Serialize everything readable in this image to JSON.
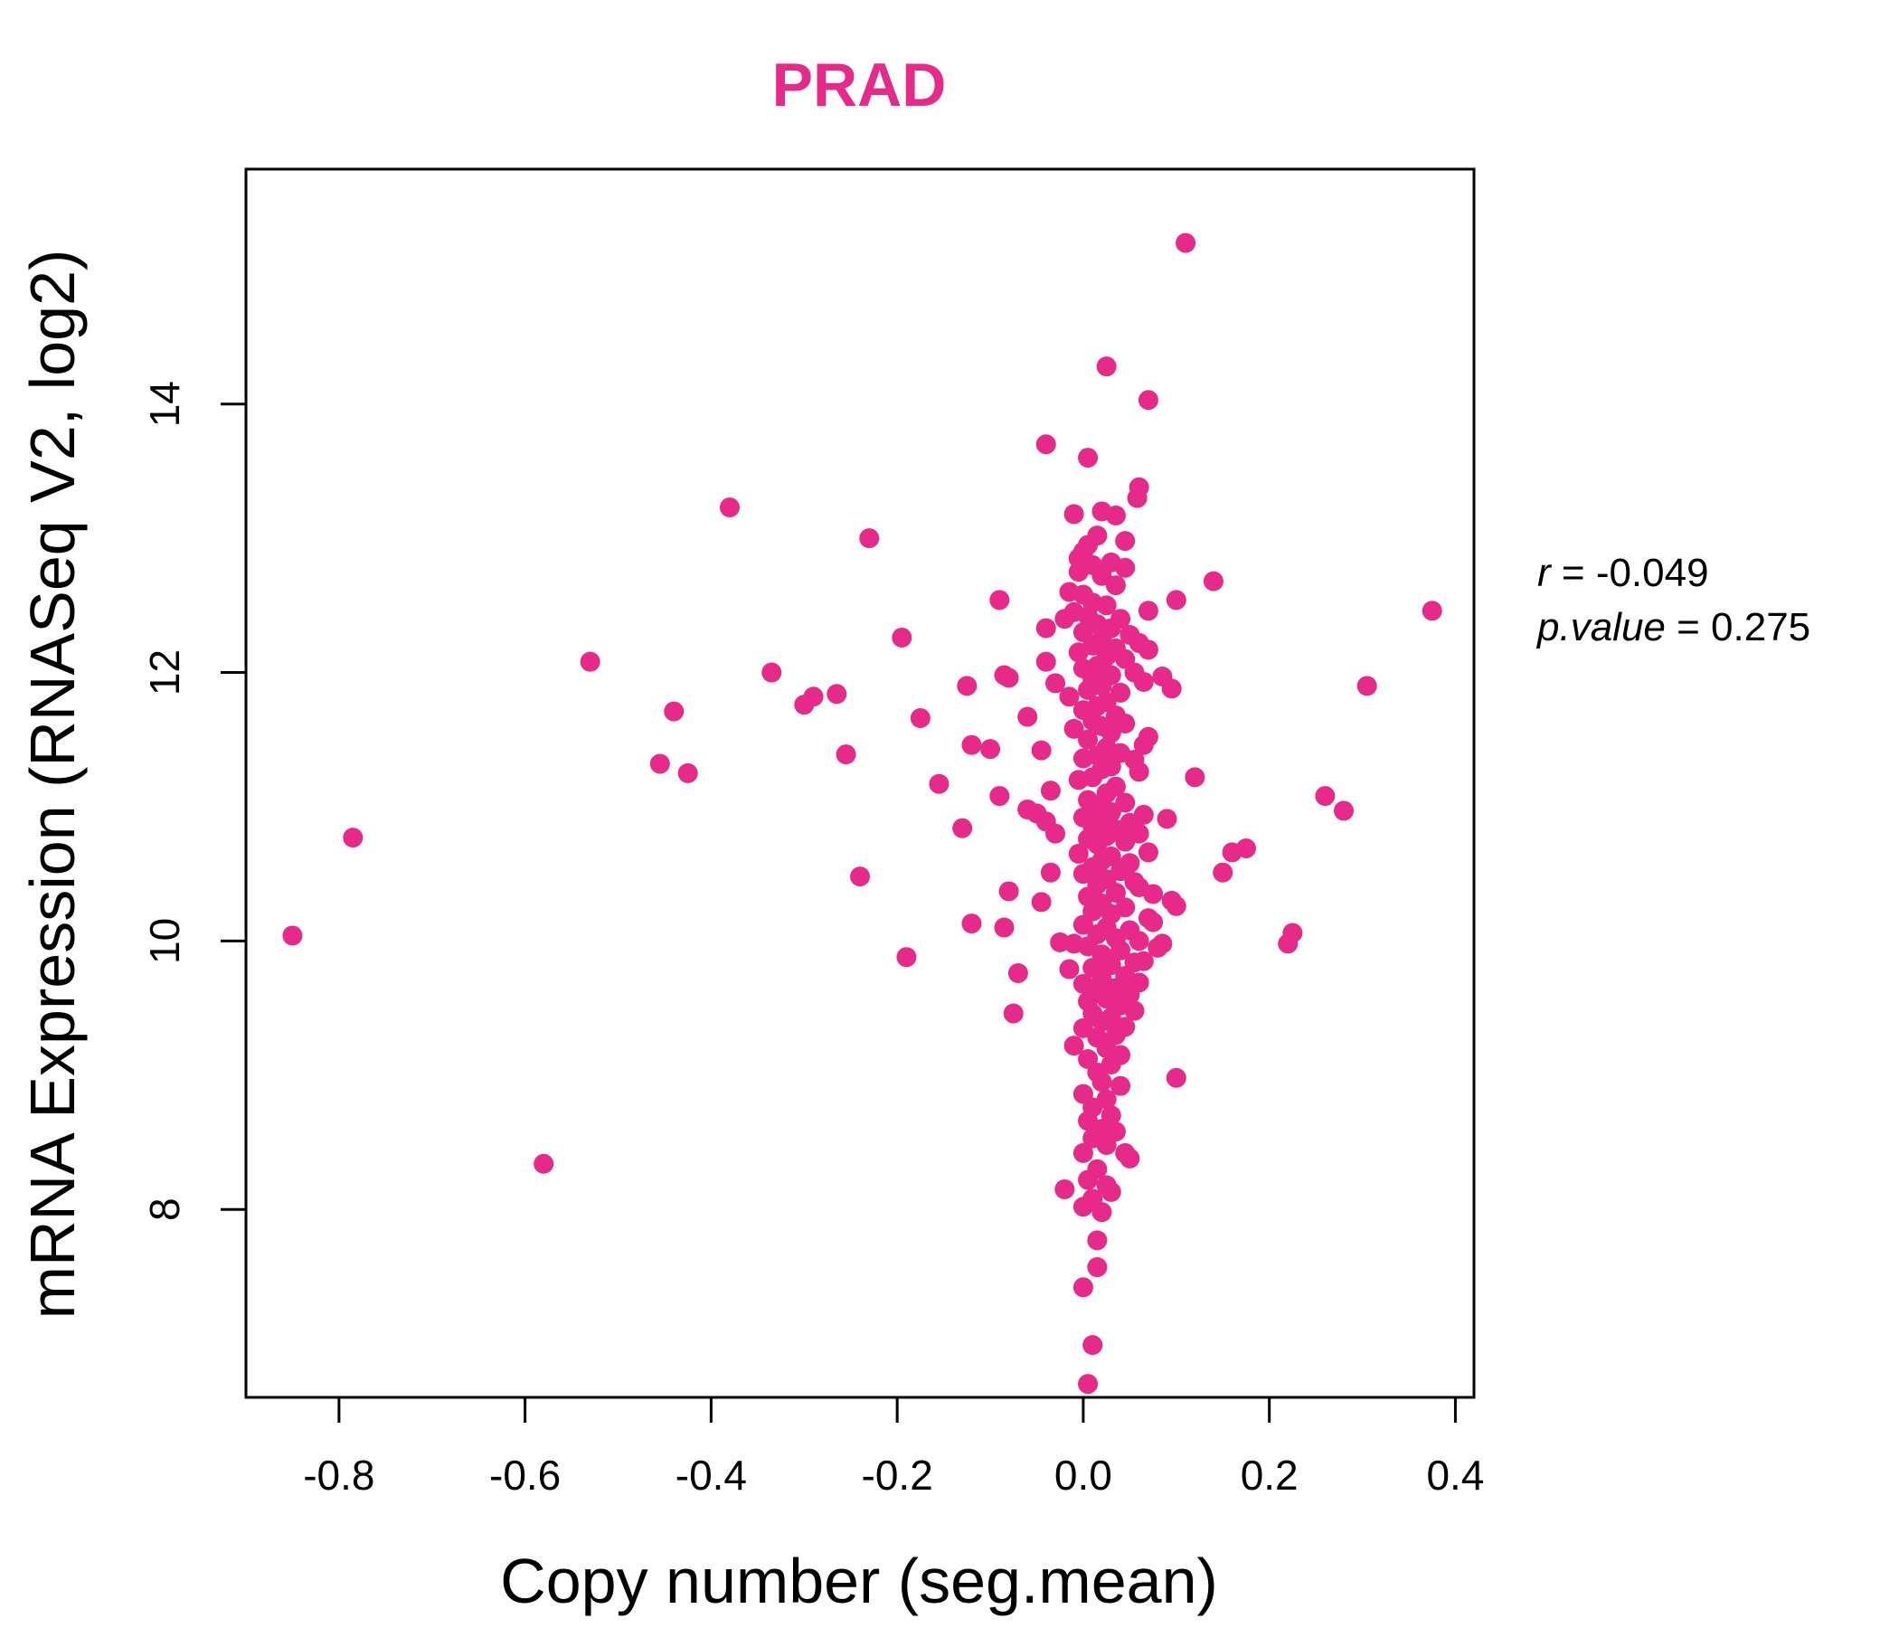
{
  "chart_data": {
    "type": "scatter",
    "title": "PRAD",
    "xlabel": "Copy number (seg.mean)",
    "ylabel": "mRNA Expression (RNASeq V2, log2)",
    "xlim": [
      -0.9,
      0.42
    ],
    "ylim": [
      6.6,
      15.75
    ],
    "x_ticks": [
      -0.8,
      -0.6,
      -0.4,
      -0.2,
      0.0,
      0.2,
      0.4
    ],
    "x_tick_labels": [
      "-0.8",
      "-0.6",
      "-0.4",
      "-0.2",
      "0.0",
      "0.2",
      "0.4"
    ],
    "y_ticks": [
      8,
      10,
      12,
      14
    ],
    "y_tick_labels": [
      "8",
      "10",
      "12",
      "14"
    ],
    "point_color": "#E7298A",
    "stats": {
      "r_label": "r",
      "r_value": "-0.049",
      "p_label": "p.value",
      "p_value": "0.275"
    },
    "points": [
      [
        0.11,
        15.2
      ],
      [
        0.025,
        14.28
      ],
      [
        0.07,
        14.03
      ],
      [
        -0.04,
        13.7
      ],
      [
        0.005,
        13.6
      ],
      [
        0.06,
        13.38
      ],
      [
        0.058,
        13.3
      ],
      [
        -0.38,
        13.23
      ],
      [
        0.02,
        13.2
      ],
      [
        0.035,
        13.17
      ],
      [
        -0.01,
        13.18
      ],
      [
        -0.23,
        13.0
      ],
      [
        0.015,
        13.02
      ],
      [
        0.045,
        12.98
      ],
      [
        0.005,
        12.95
      ],
      [
        0.0,
        12.9
      ],
      [
        -0.005,
        12.85
      ],
      [
        0.03,
        12.82
      ],
      [
        0.01,
        12.8
      ],
      [
        0.045,
        12.78
      ],
      [
        -0.005,
        12.75
      ],
      [
        0.02,
        12.72
      ],
      [
        0.14,
        12.68
      ],
      [
        0.035,
        12.65
      ],
      [
        -0.015,
        12.6
      ],
      [
        0.0,
        12.58
      ],
      [
        0.1,
        12.54
      ],
      [
        -0.09,
        12.54
      ],
      [
        0.01,
        12.52
      ],
      [
        0.025,
        12.5
      ],
      [
        0.07,
        12.46
      ],
      [
        0.375,
        12.46
      ],
      [
        -0.01,
        12.45
      ],
      [
        0.005,
        12.42
      ],
      [
        0.04,
        12.4
      ],
      [
        -0.02,
        12.4
      ],
      [
        0.015,
        12.36
      ],
      [
        0.03,
        12.33
      ],
      [
        -0.04,
        12.33
      ],
      [
        0.0,
        12.3
      ],
      [
        0.05,
        12.28
      ],
      [
        0.02,
        12.25
      ],
      [
        -0.195,
        12.26
      ],
      [
        0.06,
        12.22
      ],
      [
        0.01,
        12.2
      ],
      [
        0.035,
        12.18
      ],
      [
        0.07,
        12.17
      ],
      [
        -0.005,
        12.15
      ],
      [
        0.025,
        12.12
      ],
      [
        0.045,
        12.1
      ],
      [
        -0.53,
        12.08
      ],
      [
        -0.04,
        12.08
      ],
      [
        0.015,
        12.05
      ],
      [
        0.0,
        12.03
      ],
      [
        -0.335,
        12.0
      ],
      [
        0.055,
        12.0
      ],
      [
        0.03,
        11.98
      ],
      [
        -0.085,
        11.98
      ],
      [
        0.085,
        11.97
      ],
      [
        0.01,
        11.95
      ],
      [
        -0.08,
        11.96
      ],
      [
        0.065,
        11.93
      ],
      [
        -0.03,
        11.92
      ],
      [
        0.02,
        11.9
      ],
      [
        0.305,
        11.9
      ],
      [
        -0.125,
        11.9
      ],
      [
        0.095,
        11.88
      ],
      [
        0.005,
        11.87
      ],
      [
        0.04,
        11.85
      ],
      [
        -0.265,
        11.84
      ],
      [
        -0.29,
        11.82
      ],
      [
        -0.015,
        11.82
      ],
      [
        -0.3,
        11.76
      ],
      [
        0.025,
        11.78
      ],
      [
        0.015,
        11.75
      ],
      [
        -0.44,
        11.71
      ],
      [
        0.0,
        11.72
      ],
      [
        -0.175,
        11.66
      ],
      [
        -0.06,
        11.67
      ],
      [
        0.035,
        11.68
      ],
      [
        0.01,
        11.64
      ],
      [
        0.045,
        11.62
      ],
      [
        0.02,
        11.6
      ],
      [
        -0.01,
        11.58
      ],
      [
        0.03,
        11.55
      ],
      [
        0.07,
        11.52
      ],
      [
        0.005,
        11.5
      ],
      [
        -0.12,
        11.46
      ],
      [
        0.065,
        11.46
      ],
      [
        -0.1,
        11.43
      ],
      [
        0.025,
        11.44
      ],
      [
        -0.045,
        11.42
      ],
      [
        0.04,
        11.4
      ],
      [
        0.015,
        11.38
      ],
      [
        -0.255,
        11.39
      ],
      [
        0.0,
        11.36
      ],
      [
        0.055,
        11.35
      ],
      [
        -0.455,
        11.32
      ],
      [
        0.03,
        11.3
      ],
      [
        0.02,
        11.28
      ],
      [
        0.06,
        11.26
      ],
      [
        -0.425,
        11.25
      ],
      [
        0.12,
        11.22
      ],
      [
        0.01,
        11.22
      ],
      [
        -0.005,
        11.2
      ],
      [
        -0.155,
        11.17
      ],
      [
        0.035,
        11.15
      ],
      [
        -0.035,
        11.12
      ],
      [
        0.025,
        11.1
      ],
      [
        0.26,
        11.08
      ],
      [
        -0.09,
        11.08
      ],
      [
        0.005,
        11.05
      ],
      [
        0.045,
        11.03
      ],
      [
        0.015,
        11.0
      ],
      [
        -0.06,
        10.98
      ],
      [
        0.28,
        10.97
      ],
      [
        0.03,
        10.96
      ],
      [
        -0.05,
        10.95
      ],
      [
        0.065,
        10.94
      ],
      [
        0.09,
        10.91
      ],
      [
        0.0,
        10.92
      ],
      [
        0.02,
        10.9
      ],
      [
        -0.04,
        10.89
      ],
      [
        0.05,
        10.88
      ],
      [
        0.01,
        10.86
      ],
      [
        -0.13,
        10.84
      ],
      [
        0.035,
        10.83
      ],
      [
        -0.03,
        10.8
      ],
      [
        0.06,
        10.8
      ],
      [
        0.025,
        10.78
      ],
      [
        -0.785,
        10.77
      ],
      [
        0.005,
        10.76
      ],
      [
        0.045,
        10.74
      ],
      [
        0.015,
        10.72
      ],
      [
        0.175,
        10.69
      ],
      [
        0.16,
        10.66
      ],
      [
        0.07,
        10.66
      ],
      [
        -0.005,
        10.65
      ],
      [
        0.03,
        10.63
      ],
      [
        0.02,
        10.6
      ],
      [
        0.05,
        10.58
      ],
      [
        0.01,
        10.55
      ],
      [
        0.04,
        10.52
      ],
      [
        -0.035,
        10.51
      ],
      [
        0.15,
        10.51
      ],
      [
        0.0,
        10.5
      ],
      [
        -0.24,
        10.48
      ],
      [
        0.025,
        10.46
      ],
      [
        0.055,
        10.44
      ],
      [
        0.015,
        10.42
      ],
      [
        0.06,
        10.4
      ],
      [
        -0.08,
        10.37
      ],
      [
        0.075,
        10.35
      ],
      [
        0.035,
        10.36
      ],
      [
        0.005,
        10.33
      ],
      [
        0.095,
        10.3
      ],
      [
        -0.045,
        10.29
      ],
      [
        0.1,
        10.26
      ],
      [
        0.02,
        10.28
      ],
      [
        0.045,
        10.25
      ],
      [
        0.01,
        10.22
      ],
      [
        0.03,
        10.2
      ],
      [
        0.07,
        10.17
      ],
      [
        0.075,
        10.14
      ],
      [
        -0.12,
        10.13
      ],
      [
        0.0,
        10.12
      ],
      [
        -0.085,
        10.1
      ],
      [
        0.025,
        10.1
      ],
      [
        0.05,
        10.08
      ],
      [
        0.225,
        10.06
      ],
      [
        -0.85,
        10.04
      ],
      [
        0.015,
        10.05
      ],
      [
        0.035,
        10.02
      ],
      [
        0.06,
        10.0
      ],
      [
        -0.025,
        9.99
      ],
      [
        -0.01,
        9.98
      ],
      [
        0.22,
        9.98
      ],
      [
        0.085,
        9.98
      ],
      [
        0.08,
        9.95
      ],
      [
        0.005,
        9.96
      ],
      [
        0.04,
        9.93
      ],
      [
        0.02,
        9.9
      ],
      [
        -0.19,
        9.88
      ],
      [
        0.065,
        9.85
      ],
      [
        0.055,
        9.84
      ],
      [
        0.03,
        9.82
      ],
      [
        -0.015,
        9.79
      ],
      [
        0.01,
        9.8
      ],
      [
        -0.07,
        9.76
      ],
      [
        0.045,
        9.74
      ],
      [
        0.02,
        9.72
      ],
      [
        0.06,
        9.69
      ],
      [
        0.0,
        9.68
      ],
      [
        0.035,
        9.65
      ],
      [
        0.015,
        9.62
      ],
      [
        0.05,
        9.6
      ],
      [
        0.025,
        9.57
      ],
      [
        0.005,
        9.55
      ],
      [
        0.04,
        9.52
      ],
      [
        0.055,
        9.48
      ],
      [
        -0.075,
        9.46
      ],
      [
        0.01,
        9.46
      ],
      [
        0.03,
        9.43
      ],
      [
        0.02,
        9.4
      ],
      [
        0.045,
        9.36
      ],
      [
        0.0,
        9.35
      ],
      [
        0.035,
        9.3
      ],
      [
        0.015,
        9.28
      ],
      [
        -0.01,
        9.22
      ],
      [
        0.025,
        9.2
      ],
      [
        0.04,
        9.15
      ],
      [
        0.005,
        9.12
      ],
      [
        0.03,
        9.08
      ],
      [
        0.015,
        9.02
      ],
      [
        0.1,
        8.98
      ],
      [
        0.02,
        8.95
      ],
      [
        0.04,
        8.92
      ],
      [
        0.0,
        8.86
      ],
      [
        0.025,
        8.82
      ],
      [
        0.01,
        8.76
      ],
      [
        0.03,
        8.7
      ],
      [
        0.005,
        8.66
      ],
      [
        0.02,
        8.6
      ],
      [
        0.035,
        8.58
      ],
      [
        0.01,
        8.53
      ],
      [
        0.025,
        8.48
      ],
      [
        0.045,
        8.42
      ],
      [
        0.05,
        8.38
      ],
      [
        0.0,
        8.42
      ],
      [
        -0.58,
        8.34
      ],
      [
        0.015,
        8.3
      ],
      [
        0.005,
        8.22
      ],
      [
        0.025,
        8.18
      ],
      [
        -0.02,
        8.15
      ],
      [
        0.03,
        8.13
      ],
      [
        0.01,
        8.08
      ],
      [
        0.0,
        8.02
      ],
      [
        0.02,
        7.98
      ],
      [
        0.015,
        7.77
      ],
      [
        0.015,
        7.57
      ],
      [
        0.0,
        7.42
      ],
      [
        0.01,
        6.99
      ],
      [
        0.005,
        6.7
      ]
    ]
  }
}
